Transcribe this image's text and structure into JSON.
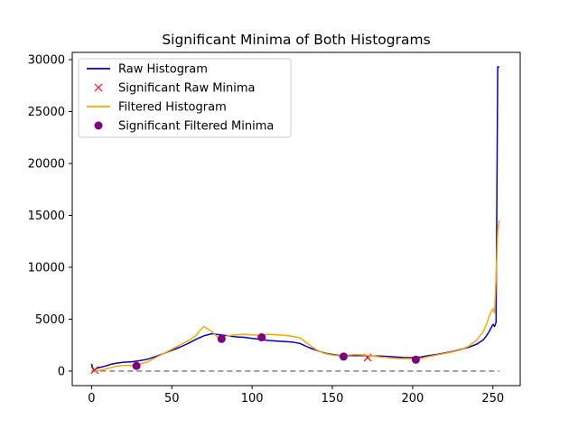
{
  "chart_data": {
    "type": "line",
    "title": "Significant Minima of Both Histograms",
    "xlabel": "",
    "ylabel": "",
    "xlim": [
      -12,
      267
    ],
    "ylim": [
      -1400,
      30700
    ],
    "xticks": [
      0,
      50,
      100,
      150,
      200,
      250
    ],
    "yticks": [
      0,
      5000,
      10000,
      15000,
      20000,
      25000,
      30000
    ],
    "grid": false,
    "legend_position": "top-left",
    "colors": {
      "raw": "#0000cd",
      "raw_minima": "#ff0000",
      "filtered": "#ffa500",
      "filtered_minima": "#800080",
      "baseline": "#808080"
    },
    "series": [
      {
        "name": "Raw Histogram",
        "kind": "line",
        "x": [
          0,
          1,
          2,
          3,
          5,
          8,
          10,
          12,
          15,
          20,
          25,
          30,
          35,
          40,
          45,
          50,
          55,
          60,
          65,
          70,
          75,
          80,
          85,
          90,
          95,
          100,
          105,
          110,
          115,
          120,
          125,
          130,
          135,
          140,
          145,
          150,
          155,
          160,
          165,
          170,
          175,
          180,
          185,
          190,
          195,
          200,
          205,
          210,
          215,
          220,
          225,
          230,
          235,
          240,
          244,
          246,
          248,
          250,
          251,
          252,
          253,
          254
        ],
        "y": [
          700,
          200,
          100,
          250,
          350,
          450,
          550,
          650,
          750,
          850,
          900,
          1000,
          1150,
          1400,
          1700,
          2000,
          2300,
          2650,
          3050,
          3400,
          3600,
          3500,
          3400,
          3300,
          3250,
          3150,
          3050,
          2950,
          2900,
          2850,
          2800,
          2650,
          2300,
          2000,
          1750,
          1600,
          1500,
          1500,
          1500,
          1500,
          1450,
          1450,
          1400,
          1350,
          1300,
          1300,
          1350,
          1500,
          1600,
          1750,
          1900,
          2100,
          2300,
          2600,
          3000,
          3400,
          3900,
          4500,
          4300,
          4700,
          29300,
          29300
        ]
      },
      {
        "name": "Significant Raw Minima",
        "kind": "marker-x",
        "x": [
          2,
          172
        ],
        "y": [
          100,
          1300
        ]
      },
      {
        "name": "Filtered Histogram",
        "kind": "line",
        "x": [
          2,
          5,
          10,
          15,
          20,
          25,
          28,
          30,
          35,
          40,
          45,
          50,
          55,
          60,
          65,
          68,
          70,
          72,
          75,
          78,
          80,
          82,
          85,
          90,
          95,
          100,
          105,
          110,
          115,
          120,
          125,
          130,
          135,
          140,
          145,
          150,
          155,
          160,
          165,
          170,
          175,
          180,
          185,
          190,
          195,
          200,
          202,
          205,
          210,
          215,
          220,
          225,
          230,
          235,
          240,
          244,
          246,
          248,
          250,
          251,
          252,
          253,
          254
        ],
        "y": [
          0,
          50,
          250,
          450,
          550,
          550,
          500,
          650,
          900,
          1300,
          1700,
          2100,
          2500,
          2900,
          3400,
          4000,
          4300,
          4100,
          3800,
          3350,
          3100,
          3300,
          3400,
          3500,
          3550,
          3500,
          3450,
          3550,
          3500,
          3450,
          3350,
          3200,
          2600,
          2050,
          1700,
          1550,
          1450,
          1550,
          1600,
          1550,
          1450,
          1350,
          1300,
          1200,
          1200,
          1200,
          1100,
          1200,
          1400,
          1550,
          1700,
          1850,
          2050,
          2400,
          3000,
          3800,
          4500,
          5400,
          6000,
          5600,
          9000,
          13500,
          14500
        ]
      },
      {
        "name": "Significant Filtered Minima",
        "kind": "marker-dot",
        "x": [
          28,
          81,
          106,
          157,
          202
        ],
        "y": [
          500,
          3100,
          3250,
          1400,
          1100
        ]
      },
      {
        "name": "",
        "kind": "dashed-baseline",
        "x": [
          0,
          254
        ],
        "y": [
          0,
          0
        ]
      }
    ]
  }
}
